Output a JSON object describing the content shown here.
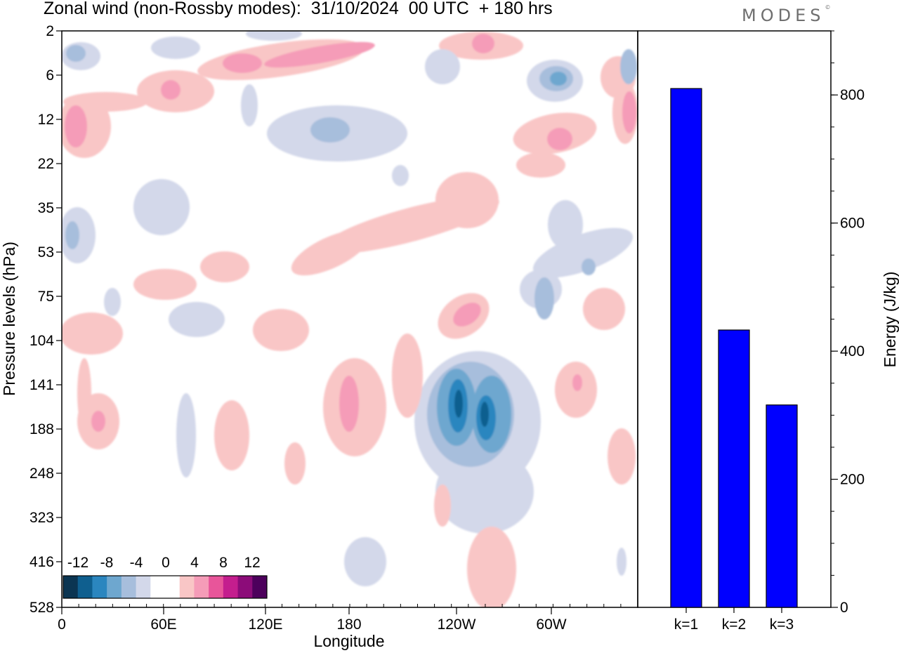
{
  "header": {
    "title": "Zonal wind (non-Rossby modes):  31/10/2024  00 UTC  + 180 hrs",
    "logo_text": "MODES",
    "logo_mark": "©"
  },
  "chart_data": [
    {
      "type": "heatmap",
      "xlabel": "Longitude",
      "ylabel": "Pressure levels (hPa)",
      "x_tick_labels": [
        "0",
        "60E",
        "120E",
        "180",
        "120W",
        "60W"
      ],
      "y_tick_labels": [
        "2",
        "6",
        "12",
        "22",
        "35",
        "53",
        "75",
        "104",
        "141",
        "188",
        "248",
        "323",
        "416",
        "528"
      ],
      "colorbar": {
        "labels": [
          "-12",
          "-8",
          "-4",
          "0",
          "4",
          "8",
          "12"
        ],
        "colors": [
          "#0b3552",
          "#0f5f8f",
          "#2b86bf",
          "#6ea7cf",
          "#a7bedc",
          "#d3d8ea",
          "#ffffff",
          "#ffffff",
          "#f9c6c6",
          "#f59cb8",
          "#e8559a",
          "#c41e8e",
          "#8c0c79",
          "#4d005c"
        ]
      },
      "contour_palette": {
        "neg_light": "#d3d8ea",
        "neg_mid": "#a7bedc",
        "neg_dark": "#6ea7cf",
        "neg_deep": "#2b86bf",
        "neg_core": "#0f5f8f",
        "pos_light": "#f9c6c6",
        "pos_mid": "#f59cb8",
        "pos_dark": "#e8559a"
      }
    },
    {
      "type": "bar",
      "categories": [
        "k=1",
        "k=2",
        "k=3"
      ],
      "values": [
        810,
        433,
        316
      ],
      "ylabel": "Energy (J/kg)",
      "ylim": [
        0,
        900
      ],
      "y_ticks": [
        0,
        200,
        400,
        600,
        800
      ],
      "bar_color": "#0000ff"
    }
  ]
}
